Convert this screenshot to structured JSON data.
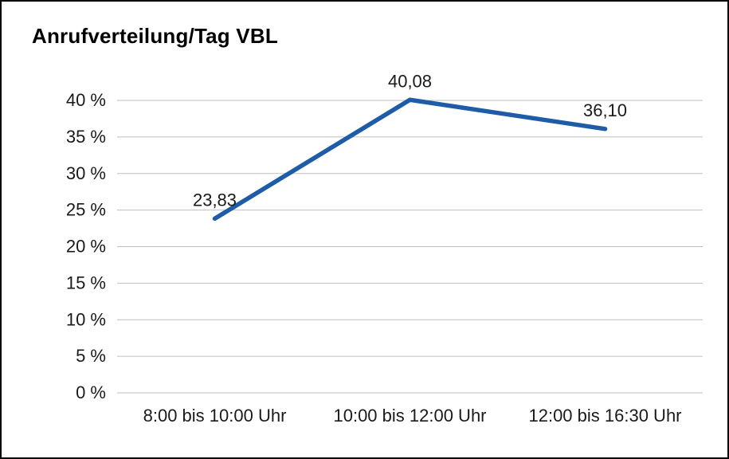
{
  "chart_data": {
    "type": "line",
    "title": "Anrufverteilung/Tag VBL",
    "categories": [
      "8:00 bis 10:00 Uhr",
      "10:00 bis 12:00 Uhr",
      "12:00 bis 16:30 Uhr"
    ],
    "values": [
      23.83,
      40.08,
      36.1
    ],
    "value_labels": [
      "23,83",
      "40,08",
      "36,10"
    ],
    "xlabel": "",
    "ylabel": "",
    "ylim": [
      0,
      40
    ],
    "ytick_step": 5,
    "ytick_suffix": " %",
    "grid": true,
    "legend_position": "none",
    "line_color": "#1f5ca8",
    "grid_color": "#bfbfbf",
    "text_color": "#1a1a1a",
    "background_color": "#ffffff",
    "border_color": "#000000"
  }
}
